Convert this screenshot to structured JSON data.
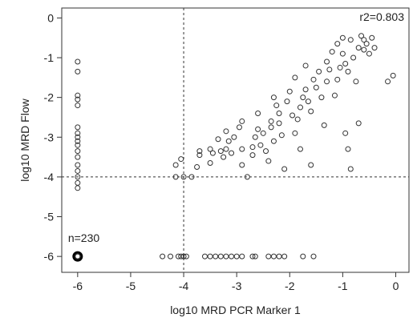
{
  "chart_data": {
    "type": "scatter",
    "title": "",
    "xlabel": "log10 MRD PCR Marker 1",
    "ylabel": "log10 MRD Flow",
    "xlim": [
      -6.3,
      0.25
    ],
    "ylim": [
      -6.4,
      0.25
    ],
    "xticks": [
      -6,
      -5,
      -4,
      -3,
      -2,
      -1,
      0
    ],
    "yticks": [
      0,
      -1,
      -2,
      -3,
      -4,
      -5,
      -6
    ],
    "xtick_labels": [
      "-6",
      "-5",
      "-4",
      "-3",
      "-2",
      "-1",
      "0"
    ],
    "ytick_labels": [
      "0",
      "-1",
      "-2",
      "-3",
      "-4",
      "-5",
      "-6"
    ],
    "grid": false,
    "reference_lines": [
      {
        "orientation": "vertical",
        "x": -4,
        "style": "dashed"
      },
      {
        "orientation": "horizontal",
        "y": -4,
        "style": "dashed"
      }
    ],
    "annotations": [
      {
        "text": "r2=0.803",
        "position": "top-right"
      },
      {
        "text": "n=230",
        "position": "bottom-left"
      }
    ],
    "marker": "open-circle",
    "points": [
      [
        -6,
        -1.1
      ],
      [
        -6,
        -1.35
      ],
      [
        -6,
        -1.95
      ],
      [
        -6,
        -2.05
      ],
      [
        -6,
        -2.2
      ],
      [
        -6,
        -2.75
      ],
      [
        -6,
        -2.9
      ],
      [
        -6,
        -3.0
      ],
      [
        -6,
        -3.1
      ],
      [
        -6,
        -3.2
      ],
      [
        -6,
        -3.35
      ],
      [
        -6,
        -3.5
      ],
      [
        -6,
        -3.7
      ],
      [
        -6,
        -3.85
      ],
      [
        -6,
        -4.0
      ],
      [
        -6,
        -4.15
      ],
      [
        -6,
        -4.28
      ],
      [
        -6,
        -6.0
      ],
      [
        -4.4,
        -6
      ],
      [
        -4.25,
        -6
      ],
      [
        -4.1,
        -6
      ],
      [
        -4.05,
        -6
      ],
      [
        -4.0,
        -6
      ],
      [
        -3.95,
        -6
      ],
      [
        -3.6,
        -6
      ],
      [
        -3.5,
        -6
      ],
      [
        -3.4,
        -6
      ],
      [
        -3.3,
        -6
      ],
      [
        -3.2,
        -6
      ],
      [
        -3.1,
        -6
      ],
      [
        -3.0,
        -6
      ],
      [
        -2.9,
        -6
      ],
      [
        -2.7,
        -6
      ],
      [
        -2.65,
        -6
      ],
      [
        -2.4,
        -6
      ],
      [
        -2.3,
        -6
      ],
      [
        -2.2,
        -6
      ],
      [
        -2.1,
        -6
      ],
      [
        -1.75,
        -6
      ],
      [
        -1.55,
        -6
      ],
      [
        -4.15,
        -3.7
      ],
      [
        -4.05,
        -3.55
      ],
      [
        -4.15,
        -4.0
      ],
      [
        -4.0,
        -4.0
      ],
      [
        -3.85,
        -4.0
      ],
      [
        -3.75,
        -3.75
      ],
      [
        -3.7,
        -3.35
      ],
      [
        -3.7,
        -3.45
      ],
      [
        -3.5,
        -3.3
      ],
      [
        -3.5,
        -3.65
      ],
      [
        -3.45,
        -3.4
      ],
      [
        -3.35,
        -3.05
      ],
      [
        -3.3,
        -3.35
      ],
      [
        -3.25,
        -3.5
      ],
      [
        -3.2,
        -3.3
      ],
      [
        -3.15,
        -3.1
      ],
      [
        -3.1,
        -3.4
      ],
      [
        -3.05,
        -3.0
      ],
      [
        -2.95,
        -2.75
      ],
      [
        -2.9,
        -3.3
      ],
      [
        -2.9,
        -3.7
      ],
      [
        -2.8,
        -4.0
      ],
      [
        -2.7,
        -3.25
      ],
      [
        -2.7,
        -3.45
      ],
      [
        -2.65,
        -3.0
      ],
      [
        -2.6,
        -2.8
      ],
      [
        -2.55,
        -3.2
      ],
      [
        -2.5,
        -2.9
      ],
      [
        -2.45,
        -3.35
      ],
      [
        -2.4,
        -3.6
      ],
      [
        -2.35,
        -2.6
      ],
      [
        -2.35,
        -2.75
      ],
      [
        -2.3,
        -3.1
      ],
      [
        -2.25,
        -2.2
      ],
      [
        -2.2,
        -2.4
      ],
      [
        -2.2,
        -2.65
      ],
      [
        -2.15,
        -2.95
      ],
      [
        -2.1,
        -3.8
      ],
      [
        -2.05,
        -2.1
      ],
      [
        -2.0,
        -1.85
      ],
      [
        -1.95,
        -2.45
      ],
      [
        -1.9,
        -2.9
      ],
      [
        -1.85,
        -2.55
      ],
      [
        -1.8,
        -2.25
      ],
      [
        -1.8,
        -3.3
      ],
      [
        -1.75,
        -2.0
      ],
      [
        -1.7,
        -1.8
      ],
      [
        -1.65,
        -2.1
      ],
      [
        -1.6,
        -2.35
      ],
      [
        -1.6,
        -3.7
      ],
      [
        -1.55,
        -1.55
      ],
      [
        -1.5,
        -1.75
      ],
      [
        -1.45,
        -1.35
      ],
      [
        -1.4,
        -2.0
      ],
      [
        -1.35,
        -2.7
      ],
      [
        -1.3,
        -1.1
      ],
      [
        -1.25,
        -1.3
      ],
      [
        -1.2,
        -0.85
      ],
      [
        -1.15,
        -1.95
      ],
      [
        -1.1,
        -1.55
      ],
      [
        -1.05,
        -1.25
      ],
      [
        -1.0,
        -0.5
      ],
      [
        -1.0,
        -0.9
      ],
      [
        -0.95,
        -1.15
      ],
      [
        -0.95,
        -2.9
      ],
      [
        -0.9,
        -1.35
      ],
      [
        -0.9,
        -3.3
      ],
      [
        -0.85,
        -0.55
      ],
      [
        -0.8,
        -1.0
      ],
      [
        -0.75,
        -1.6
      ],
      [
        -0.7,
        -0.75
      ],
      [
        -0.65,
        -0.45
      ],
      [
        -0.6,
        -0.55
      ],
      [
        -0.6,
        -0.8
      ],
      [
        -0.55,
        -0.65
      ],
      [
        -0.5,
        -0.9
      ],
      [
        -0.45,
        -0.5
      ],
      [
        -0.4,
        -0.75
      ],
      [
        -0.7,
        -2.65
      ],
      [
        -0.15,
        -1.6
      ],
      [
        -0.05,
        -1.45
      ],
      [
        -1.7,
        -1.2
      ],
      [
        -2.3,
        -2.0
      ],
      [
        -2.6,
        -2.4
      ],
      [
        -2.9,
        -2.6
      ],
      [
        -3.2,
        -2.85
      ],
      [
        -1.1,
        -0.65
      ],
      [
        -1.3,
        -1.6
      ],
      [
        -0.85,
        -3.8
      ],
      [
        -1.9,
        -1.5
      ]
    ]
  },
  "annotations_text": {
    "r2": "r2=0.803",
    "n": "n=230"
  }
}
